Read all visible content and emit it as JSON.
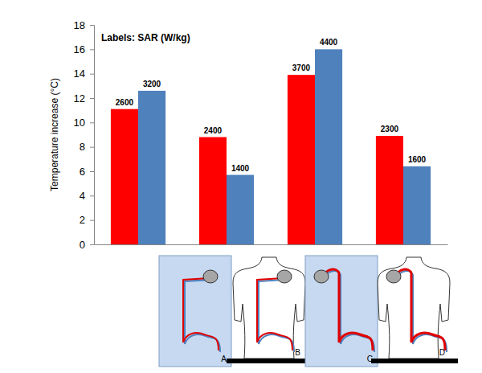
{
  "chart_data": {
    "type": "bar",
    "annotation": "Labels: SAR (W/kg)",
    "y_label": "Temperature increase (°C)",
    "categories": [
      "A",
      "B",
      "C",
      "D"
    ],
    "series": [
      {
        "color": "#ff0000",
        "values": [
          11.1,
          8.8,
          13.9,
          8.9
        ],
        "sar": [
          2600,
          2400,
          3700,
          2300
        ]
      },
      {
        "color": "#4f81bd",
        "values": [
          12.6,
          5.7,
          16.0,
          6.4
        ],
        "sar": [
          3200,
          1400,
          4400,
          1600
        ]
      }
    ],
    "ylim": [
      0,
      18
    ],
    "yticks": [
      0,
      2,
      4,
      6,
      8,
      10,
      12,
      14,
      16,
      18
    ],
    "grid": false
  }
}
